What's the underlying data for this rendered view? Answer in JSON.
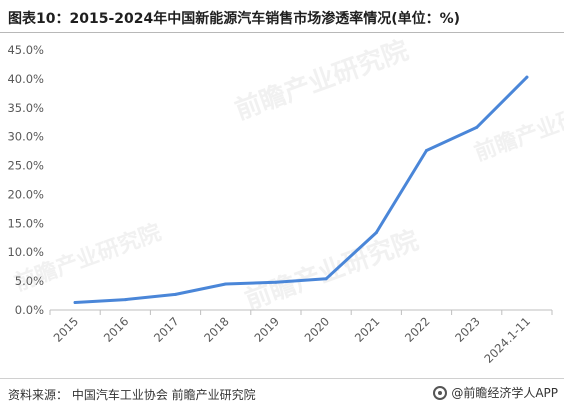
{
  "title": "图表10：2015-2024年中国新能源汽车销售市场渗透率情况(单位：%)",
  "source": "资料来源：  中国汽车工业协会 前瞻产业研究院",
  "credit": "@前瞻经济学人APP",
  "watermark": "前瞻产业研究院",
  "colors": {
    "line": "#4a86d8",
    "axis": "#bfbfbf",
    "text": "#595959"
  },
  "chart_data": {
    "type": "line",
    "title": "图表10：2015-2024年中国新能源汽车销售市场渗透率情况(单位：%)",
    "xlabel": "",
    "ylabel": "",
    "categories": [
      "2015",
      "2016",
      "2017",
      "2018",
      "2019",
      "2020",
      "2021",
      "2022",
      "2023",
      "2024.1-11"
    ],
    "series": [
      {
        "values": [
          1.3,
          1.8,
          2.7,
          4.5,
          4.8,
          5.4,
          13.4,
          27.6,
          31.6,
          40.3
        ]
      }
    ],
    "yticks": [
      "0.0%",
      "5.0%",
      "10.0%",
      "15.0%",
      "20.0%",
      "25.0%",
      "30.0%",
      "35.0%",
      "40.0%",
      "45.0%"
    ],
    "ylim": [
      0,
      45
    ],
    "grid": false,
    "legend": "none"
  }
}
